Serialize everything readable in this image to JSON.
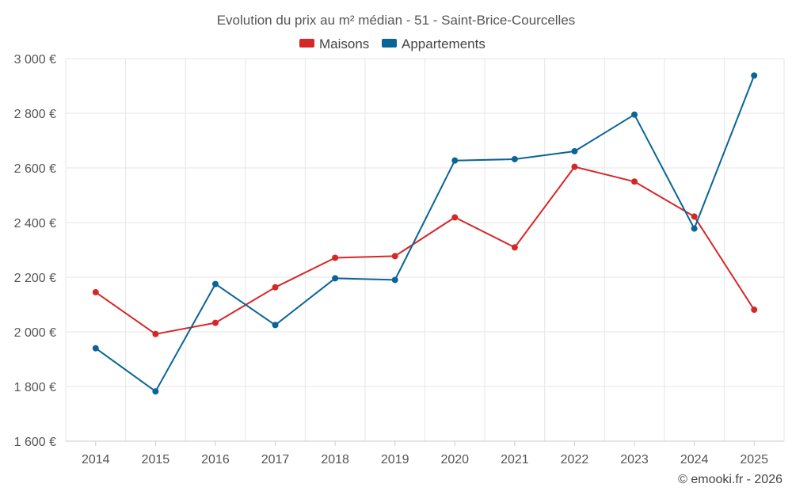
{
  "chart_data": {
    "type": "line",
    "title": "Evolution du prix au m² médian - 51 - Saint-Brice-Courcelles",
    "categories": [
      "2014",
      "2015",
      "2016",
      "2017",
      "2018",
      "2019",
      "2020",
      "2021",
      "2022",
      "2023",
      "2024",
      "2025"
    ],
    "series": [
      {
        "name": "Maisons",
        "color": "#d62728",
        "values": [
          2145,
          1992,
          2033,
          2163,
          2271,
          2277,
          2419,
          2309,
          2604,
          2550,
          2422,
          2081
        ]
      },
      {
        "name": "Appartements",
        "color": "#0a6496",
        "values": [
          1940,
          1782,
          2175,
          2025,
          2196,
          2190,
          2627,
          2632,
          2661,
          2795,
          2378,
          2938
        ]
      }
    ],
    "ylim": [
      1600,
      3000
    ],
    "yticks": [
      1600,
      1800,
      2000,
      2200,
      2400,
      2600,
      2800,
      3000
    ],
    "ytick_labels": [
      "1 600 €",
      "1 800 €",
      "2 000 €",
      "2 200 €",
      "2 400 €",
      "2 600 €",
      "2 800 €",
      "3 000 €"
    ],
    "xlabel": "",
    "ylabel": "",
    "grid": true,
    "legend_position": "top-center"
  },
  "credit": "© emooki.fr - 2026"
}
